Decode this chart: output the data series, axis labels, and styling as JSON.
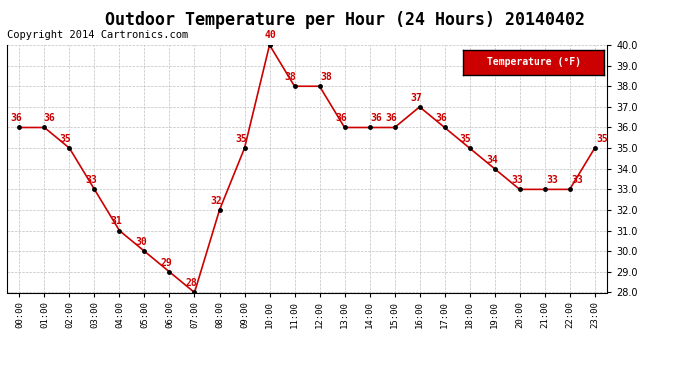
{
  "title": "Outdoor Temperature per Hour (24 Hours) 20140402",
  "copyright": "Copyright 2014 Cartronics.com",
  "legend_label": "Temperature (°F)",
  "hours": [
    "00:00",
    "01:00",
    "02:00",
    "03:00",
    "04:00",
    "05:00",
    "06:00",
    "07:00",
    "08:00",
    "09:00",
    "10:00",
    "11:00",
    "12:00",
    "13:00",
    "14:00",
    "15:00",
    "16:00",
    "17:00",
    "18:00",
    "19:00",
    "20:00",
    "21:00",
    "22:00",
    "23:00"
  ],
  "temps": [
    36,
    36,
    35,
    33,
    31,
    30,
    29,
    28,
    32,
    35,
    40,
    38,
    38,
    36,
    36,
    36,
    37,
    36,
    35,
    34,
    33,
    33,
    33,
    35
  ],
  "line_color": "#cc0000",
  "marker_color": "#000000",
  "label_color": "#cc0000",
  "grid_color": "#c0c0c0",
  "bg_color": "#ffffff",
  "legend_bg": "#cc0000",
  "legend_text_color": "#ffffff",
  "ylim_min": 28.0,
  "ylim_max": 40.0,
  "ytick_step": 1.0,
  "title_fontsize": 12,
  "copyright_fontsize": 7.5
}
